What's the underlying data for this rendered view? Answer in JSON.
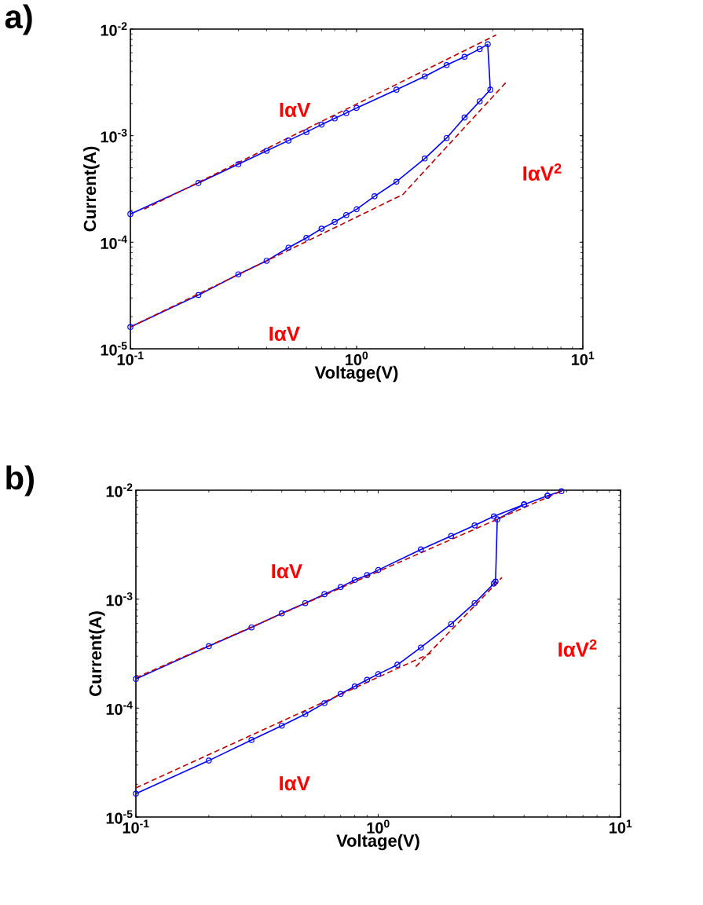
{
  "chart_data": [
    {
      "type": "line",
      "title": "a)",
      "xlabel": "Voltage(V)",
      "ylabel": "Current(A)",
      "log": "xy",
      "xlim": [
        0.1,
        10
      ],
      "ylim": [
        1e-05,
        0.01
      ],
      "xticks": [
        {
          "value": 0.1,
          "label": "10$^{-1}$"
        },
        {
          "value": 1,
          "label": "10$^{0}$"
        },
        {
          "value": 10,
          "label": "10$^{1}$"
        }
      ],
      "yticks": [
        {
          "value": 1e-05,
          "label": "10$^{-5}$"
        },
        {
          "value": 0.0001,
          "label": "10$^{-4}$"
        },
        {
          "value": 0.001,
          "label": "10$^{-3}$"
        },
        {
          "value": 0.01,
          "label": "10$^{-2}$"
        }
      ],
      "series": [
        {
          "color": "#0000ff",
          "marker": "circle",
          "line_style": "solid",
          "x": [
            0.1,
            0.2,
            0.3,
            0.4,
            0.5,
            0.6,
            0.7,
            0.8,
            0.9,
            1.0,
            1.5,
            2.0,
            2.5,
            3.0,
            3.5,
            3.8,
            3.9,
            3.5,
            3.0,
            2.5,
            2.0,
            1.5,
            1.2,
            1.0,
            0.9,
            0.8,
            0.7,
            0.6,
            0.5,
            0.4,
            0.3,
            0.2,
            0.1
          ],
          "values": [
            0.000184,
            0.00036,
            0.00054,
            0.00072,
            0.0009,
            0.00108,
            0.00127,
            0.00145,
            0.00163,
            0.00182,
            0.0027,
            0.0036,
            0.0046,
            0.0055,
            0.0065,
            0.0072,
            0.0027,
            0.0021,
            0.00148,
            0.00095,
            0.00061,
            0.00037,
            0.00027,
            0.000204,
            0.00018,
            0.000155,
            0.000134,
            0.00011,
            8.9e-05,
            6.7e-05,
            5e-05,
            3.2e-05,
            1.6e-05
          ]
        },
        {
          "color": "#c00000",
          "marker": "none",
          "line_style": "dashed",
          "x": [
            0.115,
            4.14
          ],
          "values": [
            0.000204,
            0.0088
          ]
        },
        {
          "color": "#c00000",
          "marker": "none",
          "line_style": "dashed",
          "x": [
            0.1,
            1.6,
            4.66
          ],
          "values": [
            1.6e-05,
            0.00028,
            0.0033
          ]
        }
      ],
      "annotations": [
        "IαV",
        "IαV$^{2}$",
        "IαV"
      ]
    },
    {
      "type": "line",
      "title": "b)",
      "xlabel": "Voltage(V)",
      "ylabel": "Current(A)",
      "log": "xy",
      "xlim": [
        0.1,
        10
      ],
      "ylim": [
        1e-05,
        0.01
      ],
      "xticks": [
        {
          "value": 0.1,
          "label": "10$^{-1}$"
        },
        {
          "value": 1,
          "label": "10$^{0}$"
        },
        {
          "value": 10,
          "label": "10$^{1}$"
        }
      ],
      "yticks": [
        {
          "value": 1e-05,
          "label": "10$^{-5}$"
        },
        {
          "value": 0.0001,
          "label": "10$^{-4}$"
        },
        {
          "value": 0.001,
          "label": "10$^{-3}$"
        },
        {
          "value": 0.01,
          "label": "10$^{-2}$"
        }
      ],
      "series": [
        {
          "color": "#0000ff",
          "marker": "circle",
          "line_style": "solid",
          "x": [
            0.1,
            0.2,
            0.3,
            0.4,
            0.5,
            0.6,
            0.7,
            0.8,
            0.9,
            1.0,
            1.5,
            2.0,
            2.5,
            3.0,
            4.0,
            5.0,
            5.7,
            5.0,
            4.0,
            3.1,
            3.05,
            3.0,
            2.5,
            2.0,
            1.5,
            1.2,
            1.0,
            0.9,
            0.8,
            0.7,
            0.6,
            0.5,
            0.4,
            0.3,
            0.2,
            0.1
          ],
          "values": [
            0.000185,
            0.00037,
            0.00055,
            0.00074,
            0.00092,
            0.00111,
            0.00129,
            0.0015,
            0.00166,
            0.00185,
            0.00286,
            0.0038,
            0.00475,
            0.00575,
            0.0074,
            0.0089,
            0.0098,
            0.0089,
            0.0074,
            0.0054,
            0.00145,
            0.00139,
            0.00092,
            0.00059,
            0.00036,
            0.00025,
            0.000205,
            0.000182,
            0.000158,
            0.000135,
            0.000111,
            8.8e-05,
            6.9e-05,
            5.1e-05,
            3.3e-05,
            1.64e-05
          ]
        },
        {
          "color": "#c00000",
          "marker": "none",
          "line_style": "dashed",
          "x": [
            0.1,
            5.7
          ],
          "values": [
            0.00019,
            0.0098
          ]
        },
        {
          "color": "#c00000",
          "marker": "none",
          "line_style": "dashed",
          "x": [
            0.1,
            1.53,
            1.65
          ],
          "values": [
            1.85e-05,
            0.000296,
            0.00032
          ]
        },
        {
          "color": "#c00000",
          "marker": "none",
          "line_style": "dashed",
          "x": [
            1.43,
            3.24
          ],
          "values": [
            0.00024,
            0.00158
          ]
        }
      ],
      "annotations": [
        "IαV",
        "IαV$^{2}$",
        "IαV"
      ]
    }
  ]
}
